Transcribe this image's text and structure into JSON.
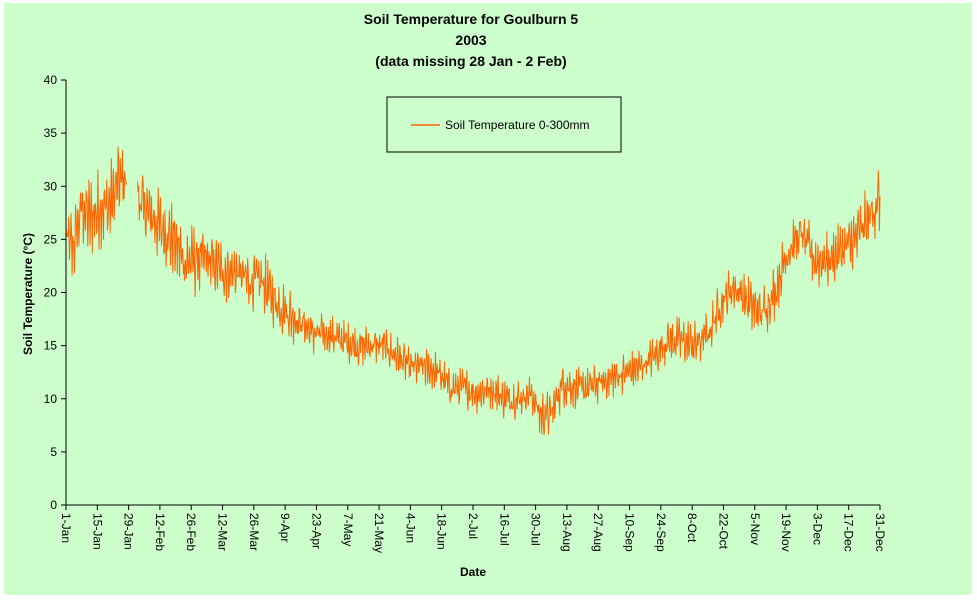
{
  "chart_data": {
    "type": "line",
    "title": [
      "Soil Temperature for Goulburn 5",
      "2003",
      "(data missing 28 Jan - 2 Feb)"
    ],
    "xlabel": "Date",
    "ylabel": "Soil Temperature (°C)",
    "ylim": [
      0,
      40
    ],
    "yticks": [
      0,
      5,
      10,
      15,
      20,
      25,
      30,
      35,
      40
    ],
    "grid": false,
    "legend_position": "top-center",
    "xlim": [
      "2003-01-01",
      "2003-12-31"
    ],
    "xticks": [
      {
        "date": "2003-01-01",
        "label": "1-Jan"
      },
      {
        "date": "2003-01-15",
        "label": "15-Jan"
      },
      {
        "date": "2003-01-29",
        "label": "29-Jan"
      },
      {
        "date": "2003-02-12",
        "label": "12-Feb"
      },
      {
        "date": "2003-02-26",
        "label": "26-Feb"
      },
      {
        "date": "2003-03-12",
        "label": "12-Mar"
      },
      {
        "date": "2003-03-26",
        "label": "26-Mar"
      },
      {
        "date": "2003-04-09",
        "label": "9-Apr"
      },
      {
        "date": "2003-04-23",
        "label": "23-Apr"
      },
      {
        "date": "2003-05-07",
        "label": "7-May"
      },
      {
        "date": "2003-05-21",
        "label": "21-May"
      },
      {
        "date": "2003-06-04",
        "label": "4-Jun"
      },
      {
        "date": "2003-06-18",
        "label": "18-Jun"
      },
      {
        "date": "2003-07-02",
        "label": "2-Jul"
      },
      {
        "date": "2003-07-16",
        "label": "16-Jul"
      },
      {
        "date": "2003-07-30",
        "label": "30-Jul"
      },
      {
        "date": "2003-08-13",
        "label": "13-Aug"
      },
      {
        "date": "2003-08-27",
        "label": "27-Aug"
      },
      {
        "date": "2003-09-10",
        "label": "10-Sep"
      },
      {
        "date": "2003-09-24",
        "label": "24-Sep"
      },
      {
        "date": "2003-10-08",
        "label": "8-Oct"
      },
      {
        "date": "2003-10-22",
        "label": "22-Oct"
      },
      {
        "date": "2003-11-05",
        "label": "5-Nov"
      },
      {
        "date": "2003-11-19",
        "label": "19-Nov"
      },
      {
        "date": "2003-12-03",
        "label": "3-Dec"
      },
      {
        "date": "2003-12-17",
        "label": "17-Dec"
      },
      {
        "date": "2003-12-31",
        "label": "31-Dec"
      }
    ],
    "series": [
      {
        "name": "Soil Temperature  0-300mm",
        "color": "#ff6600",
        "gaps": [
          [
            "2003-01-28",
            "2003-02-02"
          ]
        ],
        "x": [
          "2003-01-01",
          "2003-01-04",
          "2003-01-08",
          "2003-01-12",
          "2003-01-16",
          "2003-01-20",
          "2003-01-24",
          "2003-01-28",
          "2003-02-02",
          "2003-02-05",
          "2003-02-09",
          "2003-02-13",
          "2003-02-18",
          "2003-02-23",
          "2003-02-28",
          "2003-03-06",
          "2003-03-12",
          "2003-03-18",
          "2003-03-24",
          "2003-03-30",
          "2003-04-05",
          "2003-04-11",
          "2003-04-17",
          "2003-04-23",
          "2003-04-29",
          "2003-05-05",
          "2003-05-11",
          "2003-05-17",
          "2003-05-23",
          "2003-05-29",
          "2003-06-04",
          "2003-06-10",
          "2003-06-16",
          "2003-06-22",
          "2003-06-28",
          "2003-07-04",
          "2003-07-10",
          "2003-07-16",
          "2003-07-22",
          "2003-07-28",
          "2003-08-01",
          "2003-08-06",
          "2003-08-11",
          "2003-08-16",
          "2003-08-22",
          "2003-08-28",
          "2003-09-03",
          "2003-09-09",
          "2003-09-15",
          "2003-09-21",
          "2003-09-27",
          "2003-10-03",
          "2003-10-09",
          "2003-10-15",
          "2003-10-21",
          "2003-10-27",
          "2003-11-02",
          "2003-11-08",
          "2003-11-14",
          "2003-11-20",
          "2003-11-26",
          "2003-12-02",
          "2003-12-08",
          "2003-12-14",
          "2003-12-20",
          "2003-12-26",
          "2003-12-31"
        ],
        "y": [
          25,
          24,
          28,
          27,
          28,
          28,
          30,
          31,
          29,
          28,
          27,
          26,
          25,
          23,
          23,
          23,
          22,
          22,
          21,
          21,
          19,
          18,
          17,
          16,
          16,
          15.5,
          15,
          15,
          15,
          14,
          13,
          13,
          12.5,
          11,
          11,
          10.5,
          11,
          10,
          10,
          10.5,
          8.5,
          8.5,
          11.5,
          11,
          11,
          11.5,
          12,
          12.5,
          13,
          14,
          15.5,
          15.5,
          15,
          16,
          19,
          20.5,
          19,
          18,
          20,
          24,
          25.5,
          23,
          23,
          24,
          25,
          27,
          29
        ],
        "band": [
          5,
          5,
          5,
          5,
          5,
          5,
          6,
          5,
          4.5,
          4.5,
          4.5,
          4.5,
          4.5,
          4.5,
          4.5,
          4,
          4,
          4,
          4,
          4,
          3.5,
          3.5,
          3,
          3,
          2.5,
          2.5,
          2.5,
          2.5,
          2.5,
          2.5,
          2.5,
          2.5,
          2.5,
          2.5,
          2.5,
          2.5,
          2.5,
          2.5,
          2.5,
          2.5,
          3,
          3,
          3,
          2.5,
          2.5,
          2.5,
          2.5,
          2.5,
          2.5,
          2.5,
          3,
          3,
          3,
          3,
          3,
          3,
          3.5,
          3.5,
          3.5,
          3.5,
          3.5,
          3.5,
          3.5,
          3.5,
          4,
          4,
          4.5
        ]
      }
    ]
  }
}
